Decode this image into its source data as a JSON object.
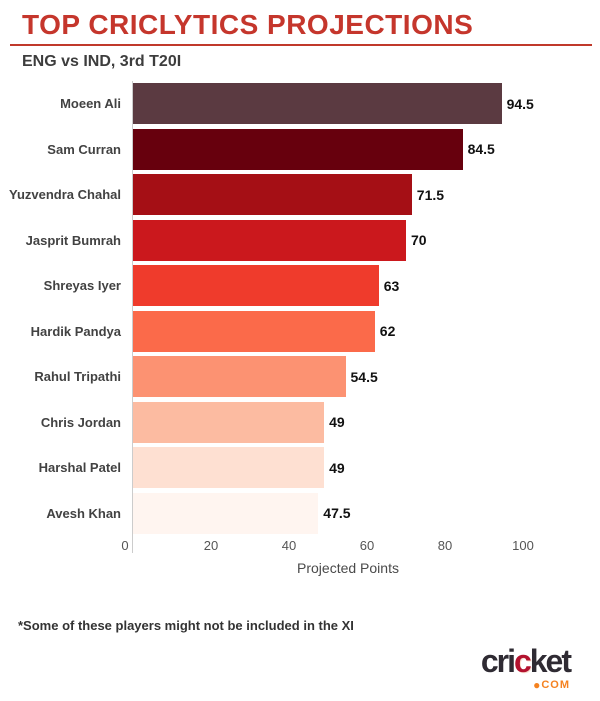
{
  "header": {
    "title": "TOP CRICLYTICS PROJECTIONS",
    "subtitle": "ENG vs IND, 3rd T20I"
  },
  "chart_data": {
    "type": "bar",
    "orientation": "horizontal",
    "title": "TOP CRICLYTICS PROJECTIONS",
    "subtitle": "ENG vs IND, 3rd T20I",
    "categories": [
      "Moeen Ali",
      "Sam Curran",
      "Yuzvendra Chahal",
      "Jasprit Bumrah",
      "Shreyas Iyer",
      "Hardik Pandya",
      "Rahul Tripathi",
      "Chris Jordan",
      "Harshal Patel",
      "Avesh Khan"
    ],
    "values": [
      94.5,
      84.5,
      71.5,
      70,
      63,
      62,
      54.5,
      49,
      49,
      47.5
    ],
    "value_labels": [
      "94.5",
      "84.5",
      "71.5",
      "70",
      "63",
      "62",
      "54.5",
      "49",
      "49",
      "47.5"
    ],
    "bar_colors": [
      "#5b3a41",
      "#67000d",
      "#a50f15",
      "#cb181d",
      "#ef3b2c",
      "#fb6a4a",
      "#fc9272",
      "#fcbba1",
      "#fee0d2",
      "#fff5f0"
    ],
    "xlabel": "Projected Points",
    "xticks": [
      0,
      20,
      40,
      60,
      80,
      100
    ],
    "xlim": [
      0,
      117
    ],
    "grid": false,
    "legend": null
  },
  "footer": {
    "note": "*Some of these players might not be included in the XI"
  },
  "logo": {
    "text_pre": "cri",
    "text_mid": "c",
    "text_post": "ket",
    "dot": "●",
    "tld": "COM",
    "color_dark": "#2f2b33",
    "color_accent": "#b3122f",
    "color_orange": "#f58220"
  },
  "colors": {
    "title": "#c5362c",
    "rule": "#c0392b",
    "axis_line": "#cccccc",
    "tick_label": "#555555",
    "category_label": "#424242",
    "value_label": "#111111",
    "background": "#ffffff"
  }
}
